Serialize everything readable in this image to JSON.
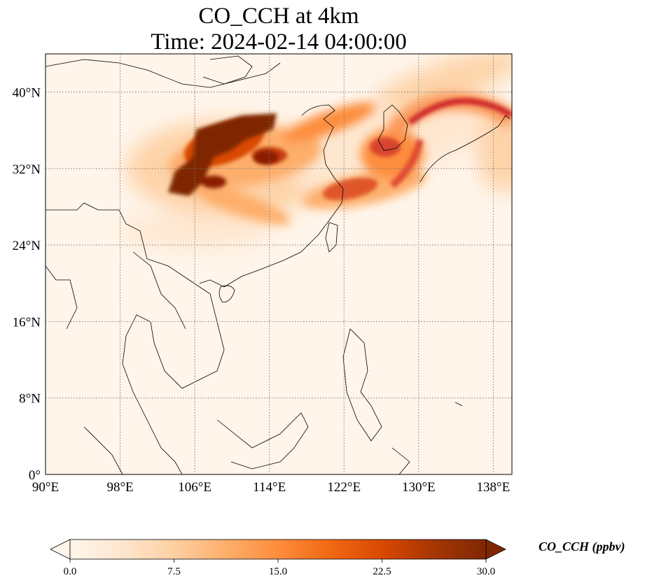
{
  "title": {
    "line1": "CO_CCH at 4km",
    "line2": "Time: 2024-02-14 04:00:00"
  },
  "map": {
    "lon_range": [
      90,
      140
    ],
    "lat_range": [
      0,
      44
    ],
    "lon_ticks": [
      {
        "value": 90,
        "label": "90°E"
      },
      {
        "value": 98,
        "label": "98°E"
      },
      {
        "value": 106,
        "label": "106°E"
      },
      {
        "value": 114,
        "label": "114°E"
      },
      {
        "value": 122,
        "label": "122°E"
      },
      {
        "value": 130,
        "label": "130°E"
      },
      {
        "value": 138,
        "label": "138°E"
      }
    ],
    "lat_ticks": [
      {
        "value": 0,
        "label": "0°"
      },
      {
        "value": 8,
        "label": "8°N"
      },
      {
        "value": 16,
        "label": "16°N"
      },
      {
        "value": 24,
        "label": "24°N"
      },
      {
        "value": 32,
        "label": "32°N"
      },
      {
        "value": 40,
        "label": "40°N"
      }
    ],
    "grid": true,
    "plumes": [
      {
        "name": "north-china-core",
        "lon": 108.5,
        "lat": 35.8,
        "value": 30
      },
      {
        "name": "sichuan-core",
        "lon": 104.5,
        "lat": 31.0,
        "value": 30
      },
      {
        "name": "central-core",
        "lon": 113.5,
        "lat": 34.0,
        "value": 28
      },
      {
        "name": "east-china-coast",
        "lon": 120.0,
        "lat": 30.5,
        "value": 24
      },
      {
        "name": "yellow-sea",
        "lon": 125.5,
        "lat": 31.5,
        "value": 22
      },
      {
        "name": "korea-plume",
        "lon": 127.0,
        "lat": 35.8,
        "value": 20
      },
      {
        "name": "japan-sea-arc",
        "lon": 134.0,
        "lat": 39.5,
        "value": 20
      }
    ]
  },
  "colorbar": {
    "vmin": 0,
    "vmax": 30,
    "extend": "both",
    "colors": [
      "#fff5eb",
      "#fee6ce",
      "#fdd0a2",
      "#fdae6b",
      "#fd8d3c",
      "#f16913",
      "#d94801",
      "#a63603",
      "#7f2704"
    ],
    "ticks": [
      {
        "value": 0,
        "label": "0.0"
      },
      {
        "value": 7.5,
        "label": "7.5"
      },
      {
        "value": 15,
        "label": "15.0"
      },
      {
        "value": 22.5,
        "label": "22.5"
      },
      {
        "value": 30,
        "label": "30.0"
      }
    ],
    "label": "CO_CCH (ppbv)"
  }
}
